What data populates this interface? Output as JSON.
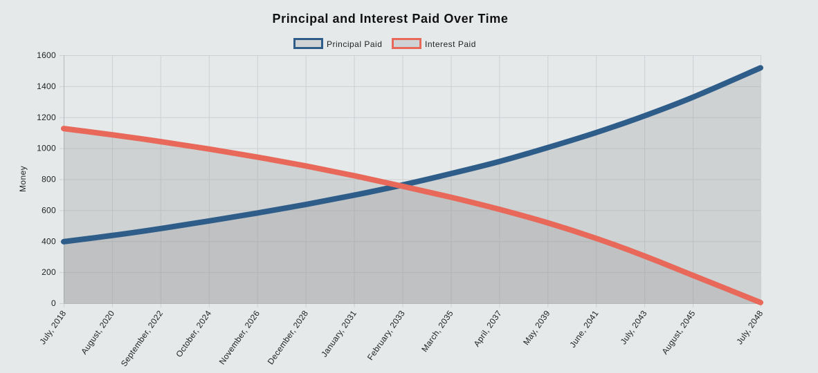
{
  "chart_data": {
    "type": "area",
    "title": "Principal and Interest Paid Over Time",
    "xlabel": "",
    "ylabel": "Money",
    "ylim": [
      0,
      1600
    ],
    "yticks": [
      0,
      200,
      400,
      600,
      800,
      1000,
      1200,
      1400,
      1600
    ],
    "legend_position": "top-center",
    "grid": true,
    "x_tick_labels": [
      "July, 2018",
      "August, 2020",
      "September, 2022",
      "October, 2024",
      "November, 2026",
      "December, 2028",
      "January, 2031",
      "February, 2033",
      "March, 2035",
      "April, 2037",
      "May, 2039",
      "June, 2041",
      "July, 2043",
      "August, 2045",
      "July, 2048"
    ],
    "x_tick_months": [
      0,
      25,
      50,
      75,
      100,
      125,
      150,
      175,
      200,
      225,
      250,
      275,
      300,
      325,
      360
    ],
    "x_range_months": [
      0,
      360
    ],
    "series": [
      {
        "name": "Principal Paid",
        "color": "#2e5d8a",
        "fill": "rgba(150,150,150,0.28)",
        "points": [
          [
            0,
            397
          ],
          [
            25,
            437
          ],
          [
            50,
            482
          ],
          [
            75,
            531
          ],
          [
            100,
            582
          ],
          [
            125,
            637
          ],
          [
            150,
            697
          ],
          [
            175,
            763
          ],
          [
            200,
            836
          ],
          [
            225,
            914
          ],
          [
            250,
            1004
          ],
          [
            275,
            1101
          ],
          [
            300,
            1209
          ],
          [
            325,
            1329
          ],
          [
            360,
            1519
          ]
        ]
      },
      {
        "name": "Interest Paid",
        "color": "#e8685a",
        "fill": "rgba(150,150,150,0.28)",
        "points": [
          [
            0,
            1127
          ],
          [
            25,
            1087
          ],
          [
            50,
            1043
          ],
          [
            75,
            995
          ],
          [
            100,
            943
          ],
          [
            125,
            886
          ],
          [
            150,
            823
          ],
          [
            175,
            755
          ],
          [
            200,
            684
          ],
          [
            225,
            606
          ],
          [
            250,
            519
          ],
          [
            275,
            419
          ],
          [
            300,
            305
          ],
          [
            325,
            180
          ],
          [
            360,
            5
          ]
        ]
      }
    ]
  }
}
